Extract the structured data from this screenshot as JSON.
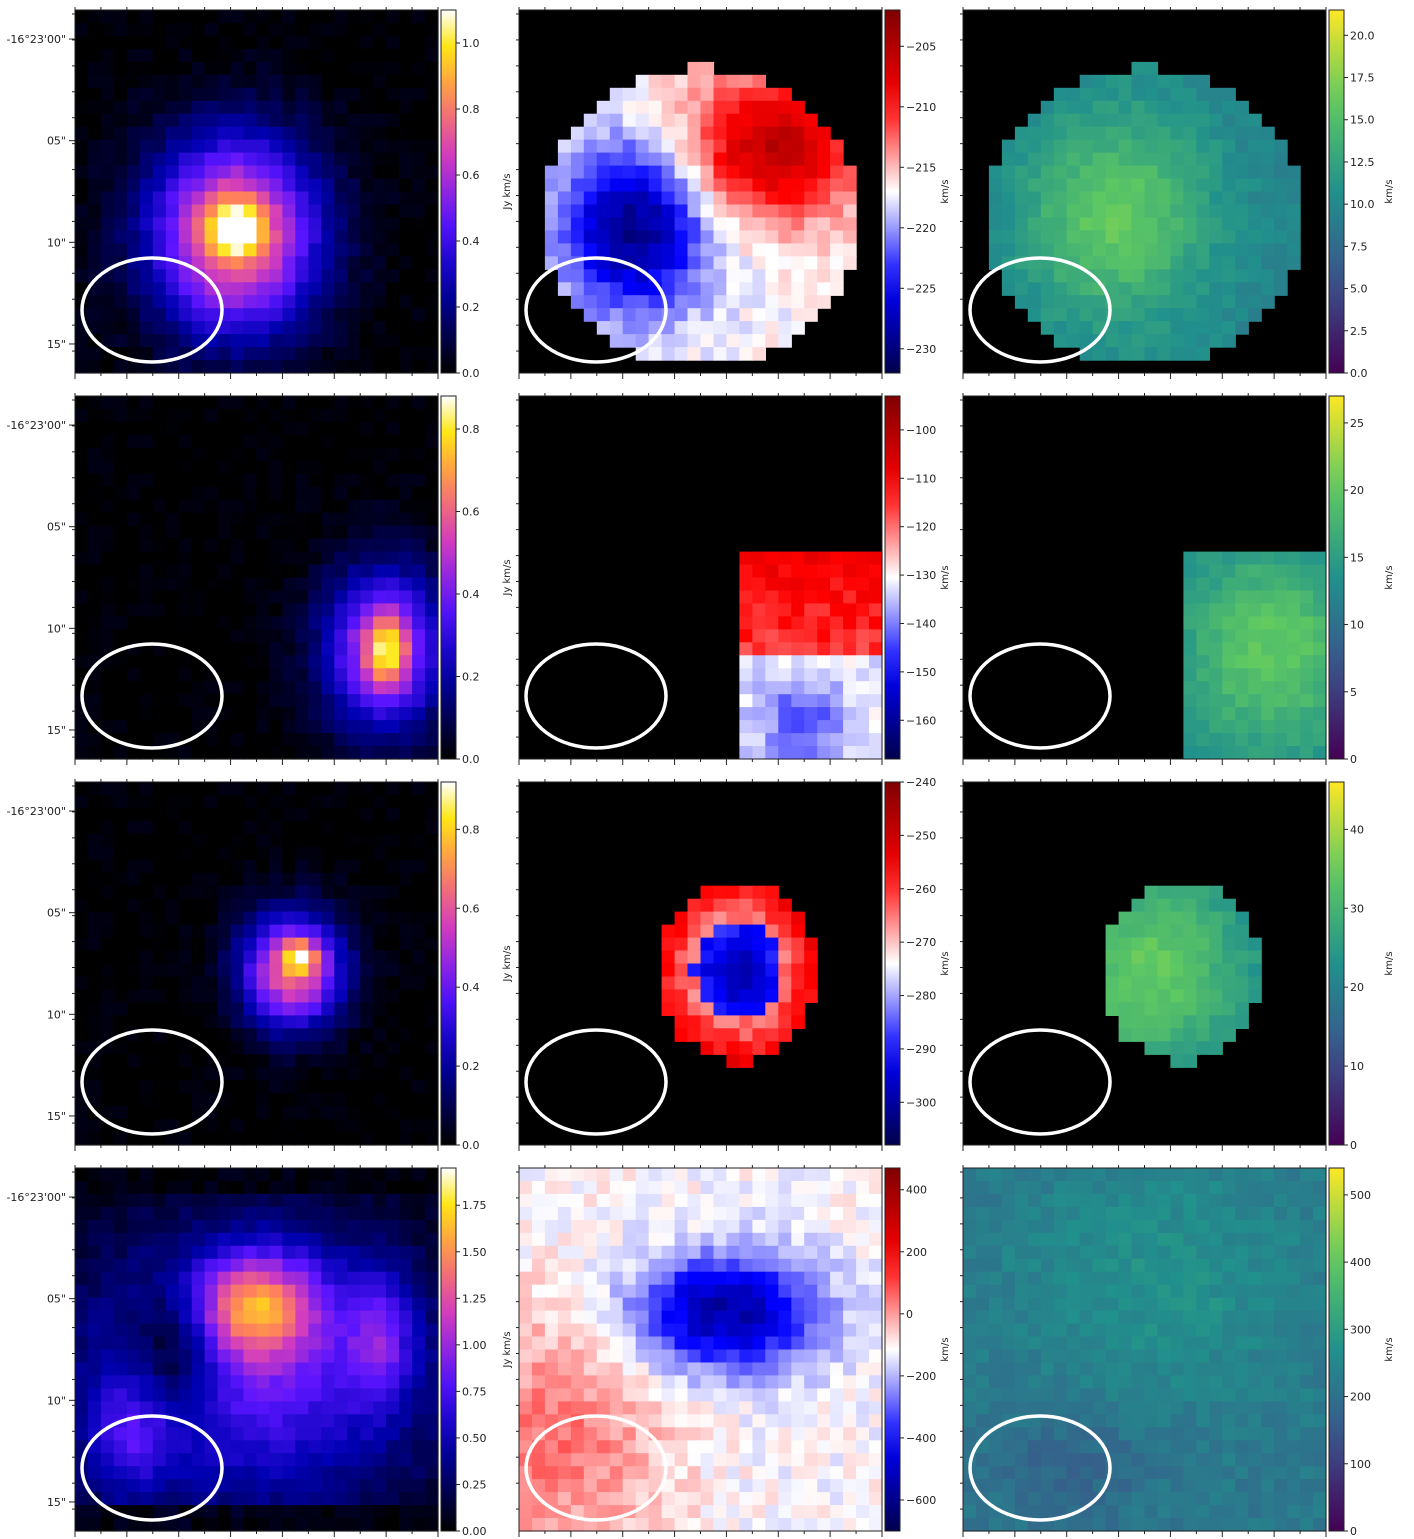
{
  "figure": {
    "dec_tick_labels": [
      "-16°23'00\"",
      "05\"",
      "10\"",
      "15\""
    ],
    "beam": "ellipse"
  },
  "chart_data": [
    {
      "type": "heatmap",
      "row": 1,
      "col": 1,
      "colormap": "gnuplot2",
      "colorbar_label": "Jy km/s",
      "colorbar_ticks": [
        "0.0",
        "0.2",
        "0.4",
        "0.6",
        "0.8",
        "1.0"
      ],
      "colorbar_values": [
        0,
        0.2,
        0.4,
        0.6,
        0.8,
        1.0
      ],
      "vmin": 0,
      "vmax": 1.1,
      "emission": {
        "shape": "disk",
        "center": [
          0.44,
          0.62
        ],
        "radius": [
          0.33,
          0.38
        ],
        "peak": [
          0.44,
          0.6
        ],
        "peak_strength": 1.08
      }
    },
    {
      "type": "heatmap",
      "row": 1,
      "col": 2,
      "colormap": "seismic",
      "colorbar_label": "km/s",
      "colorbar_ticks": [
        "−205",
        "−210",
        "−215",
        "−220",
        "−225",
        "−230"
      ],
      "colorbar_values": [
        -205,
        -210,
        -215,
        -220,
        -225,
        -230
      ],
      "vmin": -232,
      "vmax": -202,
      "velocity_field": {
        "shape": "disk",
        "center": [
          0.5,
          0.57
        ],
        "radius": [
          0.44,
          0.41
        ],
        "blue_side": "left",
        "red_side": "upper-right"
      }
    },
    {
      "type": "heatmap",
      "row": 1,
      "col": 3,
      "colormap": "viridis",
      "colorbar_label": "km/s",
      "colorbar_ticks": [
        "20.0",
        "17.5",
        "15.0",
        "12.5",
        "10.0",
        "7.5",
        "5.0",
        "2.5",
        "0.0"
      ],
      "colorbar_values": [
        20,
        17.5,
        15,
        12.5,
        10,
        7.5,
        5,
        2.5,
        0
      ],
      "vmin": 0,
      "vmax": 21.5,
      "dispersion": {
        "shape": "disk",
        "center": [
          0.5,
          0.57
        ],
        "radius": [
          0.44,
          0.41
        ],
        "peak_value": 18
      }
    },
    {
      "type": "heatmap",
      "row": 2,
      "col": 1,
      "colormap": "gnuplot2",
      "colorbar_label": "Jy km/s",
      "colorbar_ticks": [
        "0.0",
        "0.2",
        "0.4",
        "0.6",
        "0.8"
      ],
      "colorbar_values": [
        0,
        0.2,
        0.4,
        0.6,
        0.8
      ],
      "vmin": 0,
      "vmax": 0.88,
      "emission": {
        "shape": "clump",
        "center": [
          0.85,
          0.7
        ],
        "radius": [
          0.22,
          0.3
        ],
        "peak": [
          0.86,
          0.7
        ],
        "peak_strength": 0.88
      }
    },
    {
      "type": "heatmap",
      "row": 2,
      "col": 2,
      "colormap": "seismic",
      "colorbar_label": "km/s",
      "colorbar_ticks": [
        "−100",
        "−110",
        "−120",
        "−130",
        "−140",
        "−150",
        "−160"
      ],
      "colorbar_values": [
        -100,
        -110,
        -120,
        -130,
        -140,
        -150,
        -160
      ],
      "vmin": -168,
      "vmax": -93,
      "velocity_field": {
        "shape": "rect",
        "x0": 0.61,
        "y0": 0.44,
        "x1": 1.0,
        "y1": 1.0,
        "red_side": "upper",
        "blue_side": "lower"
      }
    },
    {
      "type": "heatmap",
      "row": 2,
      "col": 3,
      "colormap": "viridis",
      "colorbar_label": "km/s",
      "colorbar_ticks": [
        "25",
        "20",
        "15",
        "10",
        "5",
        "0"
      ],
      "colorbar_values": [
        25,
        20,
        15,
        10,
        5,
        0
      ],
      "vmin": 0,
      "vmax": 27,
      "dispersion": {
        "shape": "rect",
        "x0": 0.61,
        "y0": 0.44,
        "x1": 1.0,
        "y1": 1.0,
        "peak_value": 22
      }
    },
    {
      "type": "heatmap",
      "row": 3,
      "col": 1,
      "colormap": "gnuplot2",
      "colorbar_label": "Jy km/s",
      "colorbar_ticks": [
        "0.0",
        "0.2",
        "0.4",
        "0.6",
        "0.8"
      ],
      "colorbar_values": [
        0,
        0.2,
        0.4,
        0.6,
        0.8
      ],
      "vmin": 0,
      "vmax": 0.92,
      "emission": {
        "shape": "blob",
        "center": [
          0.6,
          0.52
        ],
        "radius": [
          0.2,
          0.22
        ],
        "peak": [
          0.62,
          0.48
        ],
        "peak_strength": 1.0
      }
    },
    {
      "type": "heatmap",
      "row": 3,
      "col": 2,
      "colormap": "seismic",
      "colorbar_label": "km/s",
      "colorbar_ticks": [
        "−240",
        "−250",
        "−260",
        "−270",
        "−280",
        "−290",
        "−300"
      ],
      "colorbar_values": [
        -240,
        -250,
        -260,
        -270,
        -280,
        -290,
        -300
      ],
      "vmin": -308,
      "vmax": -240,
      "velocity_field": {
        "shape": "disk",
        "center": [
          0.6,
          0.52
        ],
        "radius": [
          0.22,
          0.25
        ],
        "blue_side": "center",
        "red_side": "rim"
      }
    },
    {
      "type": "heatmap",
      "row": 3,
      "col": 3,
      "colormap": "viridis",
      "colorbar_label": "km/s",
      "colorbar_ticks": [
        "40",
        "30",
        "20",
        "10",
        "0"
      ],
      "colorbar_values": [
        40,
        30,
        20,
        10,
        0
      ],
      "vmin": 0,
      "vmax": 46,
      "dispersion": {
        "shape": "disk",
        "center": [
          0.6,
          0.52
        ],
        "radius": [
          0.22,
          0.25
        ],
        "peak_value": 35
      }
    },
    {
      "type": "heatmap",
      "row": 4,
      "col": 1,
      "colormap": "gnuplot2",
      "colorbar_label": "Jy km/s",
      "colorbar_ticks": [
        "0.00",
        "0.25",
        "0.50",
        "0.75",
        "1.00",
        "1.25",
        "1.50",
        "1.75"
      ],
      "colorbar_values": [
        0,
        0.25,
        0.5,
        0.75,
        1.0,
        1.25,
        1.5,
        1.75
      ],
      "vmin": 0,
      "vmax": 1.95,
      "emission": {
        "shape": "extended",
        "peak": [
          0.5,
          0.38
        ],
        "peak_strength": 1.9
      }
    },
    {
      "type": "heatmap",
      "row": 4,
      "col": 2,
      "colormap": "seismic",
      "colorbar_label": "km/s",
      "colorbar_ticks": [
        "400",
        "200",
        "0",
        "−200",
        "−400",
        "−600"
      ],
      "colorbar_values": [
        400,
        200,
        0,
        -200,
        -400,
        -600
      ],
      "vmin": -700,
      "vmax": 470,
      "velocity_field": {
        "shape": "full",
        "blue_region": [
          0.57,
          0.4
        ],
        "red_region": "lower-left"
      }
    },
    {
      "type": "heatmap",
      "row": 4,
      "col": 3,
      "colormap": "viridis",
      "colorbar_label": "km/s",
      "colorbar_ticks": [
        "500",
        "400",
        "300",
        "200",
        "100",
        "0"
      ],
      "colorbar_values": [
        500,
        400,
        300,
        200,
        100,
        0
      ],
      "vmin": 0,
      "vmax": 540,
      "dispersion": {
        "shape": "full",
        "typical_value": 200
      }
    }
  ]
}
